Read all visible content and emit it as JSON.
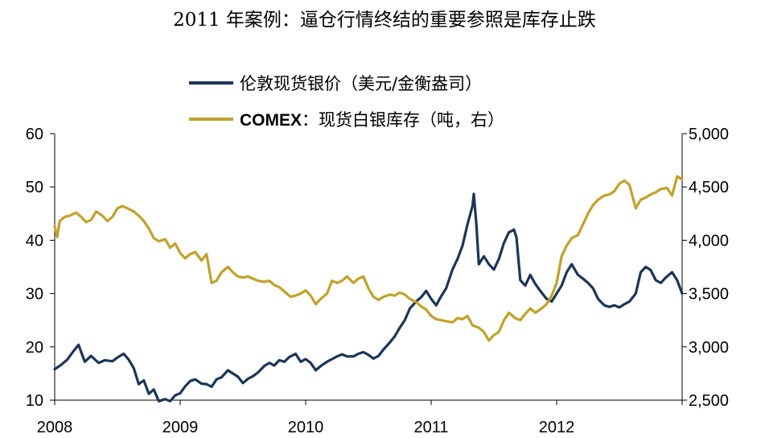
{
  "chart_data": {
    "type": "line",
    "title": "2011 年案例：逼仓行情终结的重要参照是库存止跌",
    "legend_position": "top",
    "grid": false,
    "x_range": [
      2008,
      2013
    ],
    "x_ticks": [
      "2008",
      "2009",
      "2010",
      "2011",
      "2012"
    ],
    "y_left": {
      "ylim": [
        10,
        60
      ],
      "ticks": [
        "10",
        "20",
        "30",
        "40",
        "50",
        "60"
      ]
    },
    "y_right": {
      "ylim": [
        2500,
        5000
      ],
      "ticks": [
        "2,500",
        "3,000",
        "3,500",
        "4,000",
        "4,500",
        "5,000"
      ]
    },
    "series": [
      {
        "name": "伦敦现货银价（美元/金衡盎司）",
        "axis": "left",
        "color": "#1c3557",
        "points": [
          [
            2008.0,
            15.8
          ],
          [
            2008.05,
            16.6
          ],
          [
            2008.1,
            17.6
          ],
          [
            2008.15,
            19.2
          ],
          [
            2008.19,
            20.4
          ],
          [
            2008.24,
            17.2
          ],
          [
            2008.29,
            18.3
          ],
          [
            2008.35,
            17.0
          ],
          [
            2008.4,
            17.5
          ],
          [
            2008.46,
            17.3
          ],
          [
            2008.5,
            18.0
          ],
          [
            2008.55,
            18.7
          ],
          [
            2008.59,
            17.6
          ],
          [
            2008.63,
            16.0
          ],
          [
            2008.67,
            13.0
          ],
          [
            2008.71,
            13.7
          ],
          [
            2008.75,
            11.2
          ],
          [
            2008.79,
            12.0
          ],
          [
            2008.83,
            9.8
          ],
          [
            2008.88,
            10.2
          ],
          [
            2008.92,
            9.8
          ],
          [
            2008.96,
            10.9
          ],
          [
            2009.0,
            11.3
          ],
          [
            2009.04,
            12.6
          ],
          [
            2009.08,
            13.6
          ],
          [
            2009.12,
            13.9
          ],
          [
            2009.17,
            13.1
          ],
          [
            2009.21,
            13.0
          ],
          [
            2009.25,
            12.5
          ],
          [
            2009.29,
            13.9
          ],
          [
            2009.33,
            14.3
          ],
          [
            2009.38,
            15.6
          ],
          [
            2009.42,
            15.0
          ],
          [
            2009.46,
            14.4
          ],
          [
            2009.5,
            13.2
          ],
          [
            2009.54,
            14.0
          ],
          [
            2009.58,
            14.5
          ],
          [
            2009.62,
            15.2
          ],
          [
            2009.67,
            16.4
          ],
          [
            2009.71,
            17.0
          ],
          [
            2009.75,
            16.5
          ],
          [
            2009.79,
            17.5
          ],
          [
            2009.83,
            17.2
          ],
          [
            2009.87,
            18.1
          ],
          [
            2009.92,
            18.7
          ],
          [
            2009.96,
            17.2
          ],
          [
            2010.0,
            17.7
          ],
          [
            2010.04,
            17.0
          ],
          [
            2010.08,
            15.6
          ],
          [
            2010.12,
            16.4
          ],
          [
            2010.17,
            17.2
          ],
          [
            2010.21,
            17.7
          ],
          [
            2010.25,
            18.2
          ],
          [
            2010.29,
            18.6
          ],
          [
            2010.33,
            18.2
          ],
          [
            2010.38,
            18.2
          ],
          [
            2010.42,
            18.7
          ],
          [
            2010.46,
            19.0
          ],
          [
            2010.5,
            18.5
          ],
          [
            2010.54,
            17.8
          ],
          [
            2010.58,
            18.3
          ],
          [
            2010.62,
            19.5
          ],
          [
            2010.67,
            20.8
          ],
          [
            2010.71,
            22.0
          ],
          [
            2010.75,
            23.6
          ],
          [
            2010.79,
            25.0
          ],
          [
            2010.83,
            27.2
          ],
          [
            2010.88,
            28.5
          ],
          [
            2010.92,
            29.3
          ],
          [
            2010.96,
            30.5
          ],
          [
            2011.0,
            29.0
          ],
          [
            2011.04,
            27.8
          ],
          [
            2011.08,
            29.5
          ],
          [
            2011.12,
            31.0
          ],
          [
            2011.17,
            34.5
          ],
          [
            2011.21,
            36.5
          ],
          [
            2011.25,
            39.0
          ],
          [
            2011.29,
            43.0
          ],
          [
            2011.33,
            46.5
          ],
          [
            2011.34,
            48.7
          ],
          [
            2011.36,
            43.0
          ],
          [
            2011.38,
            35.5
          ],
          [
            2011.42,
            37.0
          ],
          [
            2011.46,
            35.5
          ],
          [
            2011.5,
            34.5
          ],
          [
            2011.54,
            36.5
          ],
          [
            2011.58,
            39.5
          ],
          [
            2011.62,
            41.5
          ],
          [
            2011.66,
            42.0
          ],
          [
            2011.68,
            40.5
          ],
          [
            2011.71,
            32.5
          ],
          [
            2011.75,
            31.5
          ],
          [
            2011.79,
            33.5
          ],
          [
            2011.83,
            31.8
          ],
          [
            2011.87,
            30.5
          ],
          [
            2011.92,
            29.0
          ],
          [
            2011.96,
            28.5
          ],
          [
            2012.0,
            30.0
          ],
          [
            2012.04,
            31.5
          ],
          [
            2012.08,
            34.0
          ],
          [
            2012.12,
            35.5
          ],
          [
            2012.17,
            33.5
          ],
          [
            2012.21,
            32.8
          ],
          [
            2012.25,
            32.0
          ],
          [
            2012.29,
            31.0
          ],
          [
            2012.33,
            29.0
          ],
          [
            2012.38,
            27.8
          ],
          [
            2012.42,
            27.5
          ],
          [
            2012.46,
            27.8
          ],
          [
            2012.5,
            27.4
          ],
          [
            2012.54,
            28.0
          ],
          [
            2012.58,
            28.5
          ],
          [
            2012.63,
            30.0
          ],
          [
            2012.67,
            34.0
          ],
          [
            2012.71,
            35.0
          ],
          [
            2012.75,
            34.4
          ],
          [
            2012.79,
            32.5
          ],
          [
            2012.83,
            32.0
          ],
          [
            2012.87,
            33.0
          ],
          [
            2012.92,
            34.0
          ],
          [
            2012.96,
            32.5
          ],
          [
            2013.0,
            30.0
          ]
        ]
      },
      {
        "name": "COMEX：现货白银库存（吨，右）",
        "legend_bold_prefix": "COMEX",
        "legend_rest": "：现货白银库存（吨，右）",
        "axis": "right",
        "color": "#c0a22b",
        "points": [
          [
            2008.0,
            4130
          ],
          [
            2008.02,
            4030
          ],
          [
            2008.04,
            4180
          ],
          [
            2008.08,
            4220
          ],
          [
            2008.12,
            4230
          ],
          [
            2008.17,
            4260
          ],
          [
            2008.21,
            4220
          ],
          [
            2008.25,
            4170
          ],
          [
            2008.29,
            4190
          ],
          [
            2008.33,
            4270
          ],
          [
            2008.38,
            4230
          ],
          [
            2008.42,
            4180
          ],
          [
            2008.46,
            4220
          ],
          [
            2008.5,
            4300
          ],
          [
            2008.54,
            4320
          ],
          [
            2008.58,
            4300
          ],
          [
            2008.63,
            4270
          ],
          [
            2008.67,
            4230
          ],
          [
            2008.71,
            4180
          ],
          [
            2008.75,
            4110
          ],
          [
            2008.79,
            4020
          ],
          [
            2008.83,
            3990
          ],
          [
            2008.88,
            4010
          ],
          [
            2008.92,
            3930
          ],
          [
            2008.96,
            3970
          ],
          [
            2009.0,
            3880
          ],
          [
            2009.04,
            3830
          ],
          [
            2009.08,
            3870
          ],
          [
            2009.12,
            3890
          ],
          [
            2009.17,
            3810
          ],
          [
            2009.21,
            3870
          ],
          [
            2009.25,
            3600
          ],
          [
            2009.29,
            3620
          ],
          [
            2009.33,
            3700
          ],
          [
            2009.38,
            3750
          ],
          [
            2009.42,
            3700
          ],
          [
            2009.46,
            3660
          ],
          [
            2009.5,
            3650
          ],
          [
            2009.54,
            3660
          ],
          [
            2009.58,
            3640
          ],
          [
            2009.62,
            3620
          ],
          [
            2009.67,
            3610
          ],
          [
            2009.71,
            3620
          ],
          [
            2009.75,
            3580
          ],
          [
            2009.79,
            3560
          ],
          [
            2009.83,
            3520
          ],
          [
            2009.88,
            3470
          ],
          [
            2009.92,
            3480
          ],
          [
            2009.96,
            3500
          ],
          [
            2010.0,
            3530
          ],
          [
            2010.04,
            3480
          ],
          [
            2010.08,
            3400
          ],
          [
            2010.12,
            3450
          ],
          [
            2010.17,
            3500
          ],
          [
            2010.21,
            3620
          ],
          [
            2010.25,
            3600
          ],
          [
            2010.29,
            3620
          ],
          [
            2010.33,
            3660
          ],
          [
            2010.38,
            3600
          ],
          [
            2010.42,
            3640
          ],
          [
            2010.46,
            3660
          ],
          [
            2010.5,
            3550
          ],
          [
            2010.54,
            3470
          ],
          [
            2010.58,
            3440
          ],
          [
            2010.62,
            3470
          ],
          [
            2010.67,
            3490
          ],
          [
            2010.71,
            3480
          ],
          [
            2010.75,
            3510
          ],
          [
            2010.79,
            3490
          ],
          [
            2010.83,
            3450
          ],
          [
            2010.88,
            3420
          ],
          [
            2010.92,
            3380
          ],
          [
            2010.96,
            3350
          ],
          [
            2011.0,
            3290
          ],
          [
            2011.04,
            3260
          ],
          [
            2011.08,
            3250
          ],
          [
            2011.12,
            3240
          ],
          [
            2011.17,
            3230
          ],
          [
            2011.21,
            3270
          ],
          [
            2011.25,
            3260
          ],
          [
            2011.29,
            3290
          ],
          [
            2011.33,
            3200
          ],
          [
            2011.38,
            3180
          ],
          [
            2011.42,
            3140
          ],
          [
            2011.46,
            3060
          ],
          [
            2011.5,
            3110
          ],
          [
            2011.54,
            3140
          ],
          [
            2011.58,
            3250
          ],
          [
            2011.62,
            3320
          ],
          [
            2011.67,
            3270
          ],
          [
            2011.71,
            3250
          ],
          [
            2011.75,
            3310
          ],
          [
            2011.79,
            3360
          ],
          [
            2011.83,
            3320
          ],
          [
            2011.88,
            3360
          ],
          [
            2011.92,
            3400
          ],
          [
            2011.96,
            3480
          ],
          [
            2012.0,
            3600
          ],
          [
            2012.04,
            3850
          ],
          [
            2012.08,
            3950
          ],
          [
            2012.12,
            4020
          ],
          [
            2012.17,
            4050
          ],
          [
            2012.21,
            4150
          ],
          [
            2012.25,
            4250
          ],
          [
            2012.29,
            4330
          ],
          [
            2012.33,
            4380
          ],
          [
            2012.38,
            4420
          ],
          [
            2012.42,
            4430
          ],
          [
            2012.46,
            4460
          ],
          [
            2012.5,
            4530
          ],
          [
            2012.54,
            4560
          ],
          [
            2012.58,
            4520
          ],
          [
            2012.63,
            4300
          ],
          [
            2012.67,
            4380
          ],
          [
            2012.71,
            4400
          ],
          [
            2012.75,
            4430
          ],
          [
            2012.79,
            4450
          ],
          [
            2012.83,
            4480
          ],
          [
            2012.88,
            4490
          ],
          [
            2012.92,
            4420
          ],
          [
            2012.96,
            4600
          ],
          [
            2013.0,
            4570
          ]
        ]
      }
    ]
  }
}
